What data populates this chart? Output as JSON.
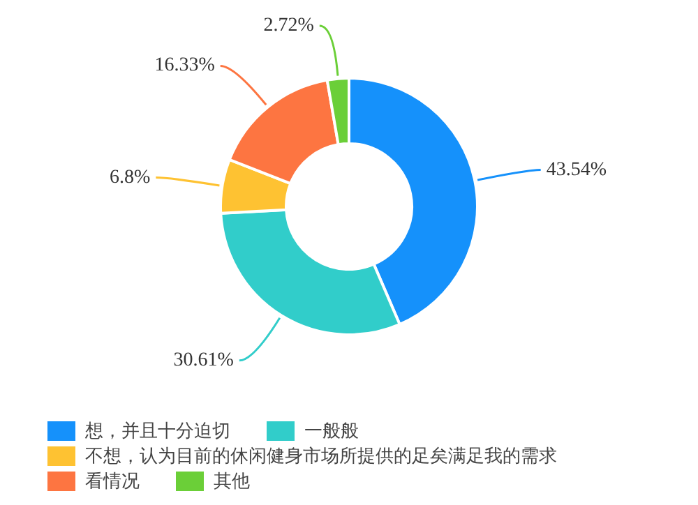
{
  "chart_data": {
    "type": "donut",
    "categories": [
      "想，并且十分迫切",
      "一般般",
      "不想，认为目前的休闲健身市场所提供的足矣满足我的需求",
      "看情况",
      "其他"
    ],
    "values": [
      43.54,
      30.61,
      6.8,
      16.33,
      2.72
    ],
    "colors": [
      "#1591fb",
      "#31cdca",
      "#fec232",
      "#fd7541",
      "#6bcf38"
    ],
    "value_labels": [
      "43.54%",
      "30.61%",
      "6.8%",
      "16.33%",
      "2.72%"
    ],
    "legend": "bottom left"
  }
}
